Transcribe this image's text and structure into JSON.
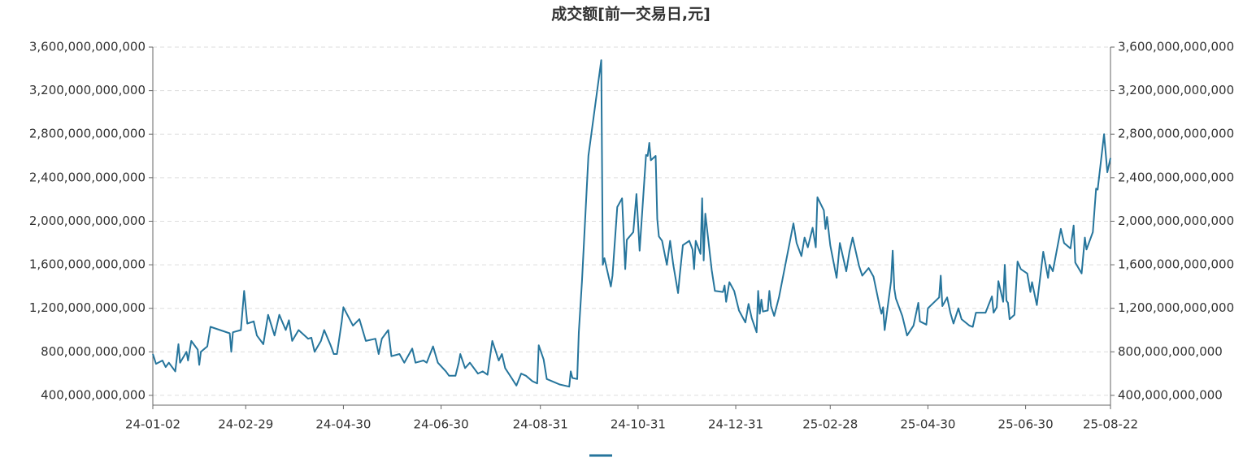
{
  "chart_data": {
    "type": "line",
    "title": "成交额[前一交易日,元]",
    "x": [
      "24-01-02",
      "24-01-04",
      "24-01-08",
      "24-01-10",
      "24-01-12",
      "24-01-16",
      "24-01-18",
      "24-01-19",
      "24-01-23",
      "24-01-24",
      "24-01-26",
      "24-01-30",
      "24-01-31",
      "24-02-01",
      "24-02-05",
      "24-02-07",
      "24-02-19",
      "24-02-20",
      "24-02-21",
      "24-02-26",
      "24-02-28",
      "24-03-01",
      "24-03-05",
      "24-03-07",
      "24-03-11",
      "24-03-14",
      "24-03-18",
      "24-03-21",
      "24-03-25",
      "24-03-27",
      "24-03-29",
      "24-04-02",
      "24-04-08",
      "24-04-10",
      "24-04-12",
      "24-04-16",
      "24-04-18",
      "24-04-22",
      "24-04-24",
      "24-04-26",
      "24-04-29",
      "24-04-30",
      "24-05-06",
      "24-05-10",
      "24-05-14",
      "24-05-20",
      "24-05-22",
      "24-05-24",
      "24-05-28",
      "24-05-30",
      "24-06-04",
      "24-06-07",
      "24-06-12",
      "24-06-14",
      "24-06-19",
      "24-06-21",
      "24-06-25",
      "24-06-28",
      "24-07-03",
      "24-07-05",
      "24-07-09",
      "24-07-11",
      "24-07-12",
      "24-07-15",
      "24-07-18",
      "24-07-23",
      "24-07-26",
      "24-07-29",
      "24-08-01",
      "24-08-05",
      "24-08-07",
      "24-08-09",
      "24-08-13",
      "24-08-16",
      "24-08-19",
      "24-08-22",
      "24-08-26",
      "24-08-29",
      "24-08-30",
      "24-09-02",
      "24-09-04",
      "24-09-09",
      "24-09-12",
      "24-09-18",
      "24-09-19",
      "24-09-20",
      "24-09-23",
      "24-09-24",
      "24-09-26",
      "24-09-30",
      "24-10-08",
      "24-10-09",
      "24-10-10",
      "24-10-14",
      "24-10-15",
      "24-10-18",
      "24-10-21",
      "24-10-23",
      "24-10-24",
      "24-10-28",
      "24-10-30",
      "24-11-01",
      "24-11-05",
      "24-11-06",
      "24-11-07",
      "24-11-08",
      "24-11-11",
      "24-11-12",
      "24-11-13",
      "24-11-15",
      "24-11-18",
      "24-11-20",
      "24-11-22",
      "24-11-25",
      "24-11-26",
      "24-11-28",
      "24-12-02",
      "24-12-04",
      "24-12-05",
      "24-12-06",
      "24-12-09",
      "24-12-10",
      "24-12-11",
      "24-12-12",
      "24-12-16",
      "24-12-18",
      "24-12-23",
      "24-12-24",
      "24-12-25",
      "24-12-27",
      "24-12-30",
      "25-01-02",
      "25-01-06",
      "25-01-08",
      "25-01-10",
      "25-01-13",
      "25-01-14",
      "25-01-15",
      "25-01-16",
      "25-01-17",
      "25-01-20",
      "25-01-21",
      "25-01-22",
      "25-01-24",
      "25-01-27",
      "25-02-05",
      "25-02-07",
      "25-02-10",
      "25-02-12",
      "25-02-14",
      "25-02-17",
      "25-02-19",
      "25-02-20",
      "25-02-24",
      "25-02-25",
      "25-02-26",
      "25-02-28",
      "25-03-04",
      "25-03-06",
      "25-03-10",
      "25-03-12",
      "25-03-14",
      "25-03-18",
      "25-03-20",
      "25-03-24",
      "25-03-27",
      "25-03-31",
      "25-04-01",
      "25-04-02",
      "25-04-03",
      "25-04-07",
      "25-04-08",
      "25-04-09",
      "25-04-10",
      "25-04-14",
      "25-04-17",
      "25-04-21",
      "25-04-24",
      "25-04-25",
      "25-04-29",
      "25-04-30",
      "25-05-07",
      "25-05-08",
      "25-05-09",
      "25-05-12",
      "25-05-14",
      "25-05-16",
      "25-05-19",
      "25-05-21",
      "25-05-26",
      "25-05-28",
      "25-05-30",
      "25-06-05",
      "25-06-09",
      "25-06-10",
      "25-06-12",
      "25-06-13",
      "25-06-16",
      "25-06-17",
      "25-06-18",
      "25-06-19",
      "25-06-20",
      "25-06-23",
      "25-06-25",
      "25-06-27",
      "25-07-01",
      "25-07-03",
      "25-07-04",
      "25-07-07",
      "25-07-09",
      "25-07-11",
      "25-07-14",
      "25-07-15",
      "25-07-17",
      "25-07-22",
      "25-07-24",
      "25-07-28",
      "25-07-30",
      "25-07-31",
      "25-08-04",
      "25-08-06",
      "25-08-07",
      "25-08-11",
      "25-08-13",
      "25-08-14",
      "25-08-18",
      "25-08-20",
      "25-08-22"
    ],
    "series": [
      {
        "color": "#26759c",
        "values": [
          780000000000.0,
          690000000000.0,
          720000000000.0,
          660000000000.0,
          700000000000.0,
          620000000000.0,
          870000000000.0,
          700000000000.0,
          800000000000.0,
          720000000000.0,
          900000000000.0,
          820000000000.0,
          680000000000.0,
          800000000000.0,
          850000000000.0,
          1030000000000.0,
          970000000000.0,
          800000000000.0,
          980000000000.0,
          1000000000000.0,
          1360000000000.0,
          1060000000000.0,
          1080000000000.0,
          950000000000.0,
          870000000000.0,
          1140000000000.0,
          950000000000.0,
          1140000000000.0,
          1000000000000.0,
          1090000000000.0,
          900000000000.0,
          1000000000000.0,
          920000000000.0,
          930000000000.0,
          800000000000.0,
          900000000000.0,
          1000000000000.0,
          860000000000.0,
          780000000000.0,
          780000000000.0,
          1080000000000.0,
          1210000000000.0,
          1040000000000.0,
          1100000000000.0,
          900000000000.0,
          920000000000.0,
          780000000000.0,
          920000000000.0,
          1000000000000.0,
          760000000000.0,
          780000000000.0,
          700000000000.0,
          830000000000.0,
          700000000000.0,
          720000000000.0,
          700000000000.0,
          850000000000.0,
          700000000000.0,
          620000000000.0,
          580000000000.0,
          580000000000.0,
          700000000000.0,
          780000000000.0,
          650000000000.0,
          700000000000.0,
          600000000000.0,
          620000000000.0,
          590000000000.0,
          900000000000.0,
          720000000000.0,
          780000000000.0,
          650000000000.0,
          560000000000.0,
          490000000000.0,
          600000000000.0,
          580000000000.0,
          530000000000.0,
          510000000000.0,
          860000000000.0,
          730000000000.0,
          550000000000.0,
          520000000000.0,
          500000000000.0,
          480000000000.0,
          620000000000.0,
          560000000000.0,
          550000000000.0,
          980000000000.0,
          1450000000000.0,
          2600000000000.0,
          3480000000000.0,
          1600000000000.0,
          1660000000000.0,
          1400000000000.0,
          1500000000000.0,
          2130000000000.0,
          2210000000000.0,
          1560000000000.0,
          1830000000000.0,
          1900000000000.0,
          2250000000000.0,
          1730000000000.0,
          2610000000000.0,
          2600000000000.0,
          2720000000000.0,
          2560000000000.0,
          2600000000000.0,
          2020000000000.0,
          1860000000000.0,
          1820000000000.0,
          1600000000000.0,
          1820000000000.0,
          1600000000000.0,
          1340000000000.0,
          1500000000000.0,
          1780000000000.0,
          1820000000000.0,
          1740000000000.0,
          1560000000000.0,
          1820000000000.0,
          1700000000000.0,
          2210000000000.0,
          1640000000000.0,
          2070000000000.0,
          1550000000000.0,
          1360000000000.0,
          1350000000000.0,
          1410000000000.0,
          1260000000000.0,
          1440000000000.0,
          1360000000000.0,
          1180000000000.0,
          1070000000000.0,
          1240000000000.0,
          1110000000000.0,
          980000000000.0,
          1360000000000.0,
          1150000000000.0,
          1280000000000.0,
          1170000000000.0,
          1180000000000.0,
          1360000000000.0,
          1220000000000.0,
          1130000000000.0,
          1300000000000.0,
          1980000000000.0,
          1800000000000.0,
          1680000000000.0,
          1850000000000.0,
          1760000000000.0,
          1940000000000.0,
          1760000000000.0,
          2220000000000.0,
          2100000000000.0,
          1930000000000.0,
          2040000000000.0,
          1780000000000.0,
          1480000000000.0,
          1800000000000.0,
          1540000000000.0,
          1720000000000.0,
          1850000000000.0,
          1590000000000.0,
          1500000000000.0,
          1570000000000.0,
          1490000000000.0,
          1210000000000.0,
          1150000000000.0,
          1210000000000.0,
          1000000000000.0,
          1450000000000.0,
          1730000000000.0,
          1380000000000.0,
          1290000000000.0,
          1130000000000.0,
          950000000000.0,
          1040000000000.0,
          1250000000000.0,
          1080000000000.0,
          1050000000000.0,
          1200000000000.0,
          1300000000000.0,
          1500000000000.0,
          1220000000000.0,
          1300000000000.0,
          1160000000000.0,
          1060000000000.0,
          1200000000000.0,
          1100000000000.0,
          1040000000000.0,
          1030000000000.0,
          1160000000000.0,
          1160000000000.0,
          1310000000000.0,
          1160000000000.0,
          1210000000000.0,
          1450000000000.0,
          1260000000000.0,
          1600000000000.0,
          1270000000000.0,
          1250000000000.0,
          1100000000000.0,
          1140000000000.0,
          1630000000000.0,
          1560000000000.0,
          1520000000000.0,
          1350000000000.0,
          1440000000000.0,
          1230000000000.0,
          1470000000000.0,
          1720000000000.0,
          1480000000000.0,
          1600000000000.0,
          1540000000000.0,
          1930000000000.0,
          1800000000000.0,
          1750000000000.0,
          1960000000000.0,
          1620000000000.0,
          1520000000000.0,
          1850000000000.0,
          1740000000000.0,
          1900000000000.0,
          2300000000000.0,
          2290000000000.0,
          2800000000000.0,
          2450000000000.0,
          2580000000000.0
        ]
      }
    ],
    "xlim": [
      "24-01-02",
      "25-08-22"
    ],
    "xticks": [
      "24-01-02",
      "24-02-29",
      "24-04-30",
      "24-06-30",
      "24-08-31",
      "24-10-31",
      "24-12-31",
      "25-02-28",
      "25-04-30",
      "25-06-30",
      "25-08-22"
    ],
    "ylim": [
      310000000000.0,
      3600000000000.0
    ],
    "yticks": [
      {
        "value": 400000000000.0,
        "label": "400,000,000,000"
      },
      {
        "value": 800000000000.0,
        "label": "800,000,000,000"
      },
      {
        "value": 1200000000000.0,
        "label": "1,200,000,000,000"
      },
      {
        "value": 1600000000000.0,
        "label": "1,600,000,000,000"
      },
      {
        "value": 2000000000000.0,
        "label": "2,000,000,000,000"
      },
      {
        "value": 2400000000000.0,
        "label": "2,400,000,000,000"
      },
      {
        "value": 2800000000000.0,
        "label": "2,800,000,000,000"
      },
      {
        "value": 3200000000000.0,
        "label": "3,200,000,000,000"
      },
      {
        "value": 3600000000000.0,
        "label": "3,600,000,000,000"
      }
    ],
    "y2lim": [
      310000000000.0,
      3600000000000.0
    ],
    "y2ticks": [
      {
        "value": 400000000000.0,
        "label": "400,000,000,000"
      },
      {
        "value": 800000000000.0,
        "label": "800,000,000,000"
      },
      {
        "value": 1200000000000.0,
        "label": "1,200,000,000,000"
      },
      {
        "value": 1600000000000.0,
        "label": "1,600,000,000,000"
      },
      {
        "value": 2000000000000.0,
        "label": "2,000,000,000,000"
      },
      {
        "value": 2400000000000.0,
        "label": "2,400,000,000,000"
      },
      {
        "value": 2800000000000.0,
        "label": "2,800,000,000,000"
      },
      {
        "value": 3200000000000.0,
        "label": "3,200,000,000,000"
      },
      {
        "value": 3600000000000.0,
        "label": "3,600,000,000,000"
      }
    ],
    "grid": true
  }
}
